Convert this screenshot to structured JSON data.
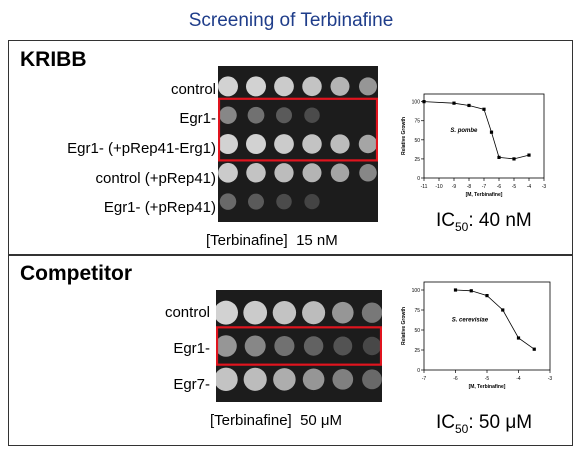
{
  "title": "Screening of Terbinafine",
  "kribb": {
    "heading": "KRIBB",
    "rows": [
      "control",
      "Egr1-",
      "Egr1- (+pRep41-Erg1)",
      "control (+pRep41)",
      "Egr1- (+pRep41)"
    ],
    "concentration_label": "[Terbinafine]",
    "concentration_value": "15 nM",
    "ic_label": "IC",
    "ic_sub": "50",
    "ic_value": ": 40 nM",
    "chart": {
      "ylabel": "Relative Growth",
      "xlabel": "[M, Terbinafine]",
      "species": "S. pombe",
      "xticks": [
        "-11",
        "-10",
        "-9",
        "-8",
        "-7",
        "-6",
        "-5",
        "-4",
        "-3"
      ],
      "yticks": [
        "0",
        "25",
        "50",
        "75",
        "100"
      ]
    }
  },
  "competitor": {
    "heading": "Competitor",
    "rows": [
      "control",
      "Egr1-",
      "Egr7-"
    ],
    "concentration_label": "[Terbinafine]",
    "concentration_value": "50 μM",
    "ic_label": "IC",
    "ic_sub": "50",
    "ic_value": ": 50 μM",
    "chart": {
      "ylabel": "Relative Growth",
      "xlabel": "[M, Terbinafine]",
      "species": "S. cerevisiae",
      "xticks": [
        "-7",
        "-6",
        "-5",
        "-4",
        "-3"
      ],
      "yticks": [
        "0",
        "25",
        "50",
        "75",
        "100"
      ]
    }
  },
  "colors": {
    "title": "#1f3d8a",
    "highlight": "#e0141e",
    "plate": "#1c1c1c"
  },
  "chart_data": [
    {
      "type": "scatter",
      "xlabel": "[M, Terbinafine]",
      "ylabel": "Relative Growth",
      "xlim": [
        -11,
        -3
      ],
      "ylim": [
        0,
        110
      ],
      "series": [
        {
          "x": [
            -11,
            -9,
            -8,
            -7,
            -6.5,
            -6,
            -5,
            -4
          ],
          "y": [
            100,
            98,
            95,
            90,
            60,
            27,
            25,
            30
          ]
        }
      ]
    },
    {
      "type": "scatter",
      "xlabel": "[M, Terbinafine]",
      "ylabel": "Relative Growth",
      "xlim": [
        -7,
        -3
      ],
      "ylim": [
        0,
        110
      ],
      "series": [
        {
          "x": [
            -6,
            -5.5,
            -5,
            -4.5,
            -4,
            -3.5
          ],
          "y": [
            100,
            99,
            93,
            75,
            40,
            26
          ]
        }
      ]
    }
  ]
}
